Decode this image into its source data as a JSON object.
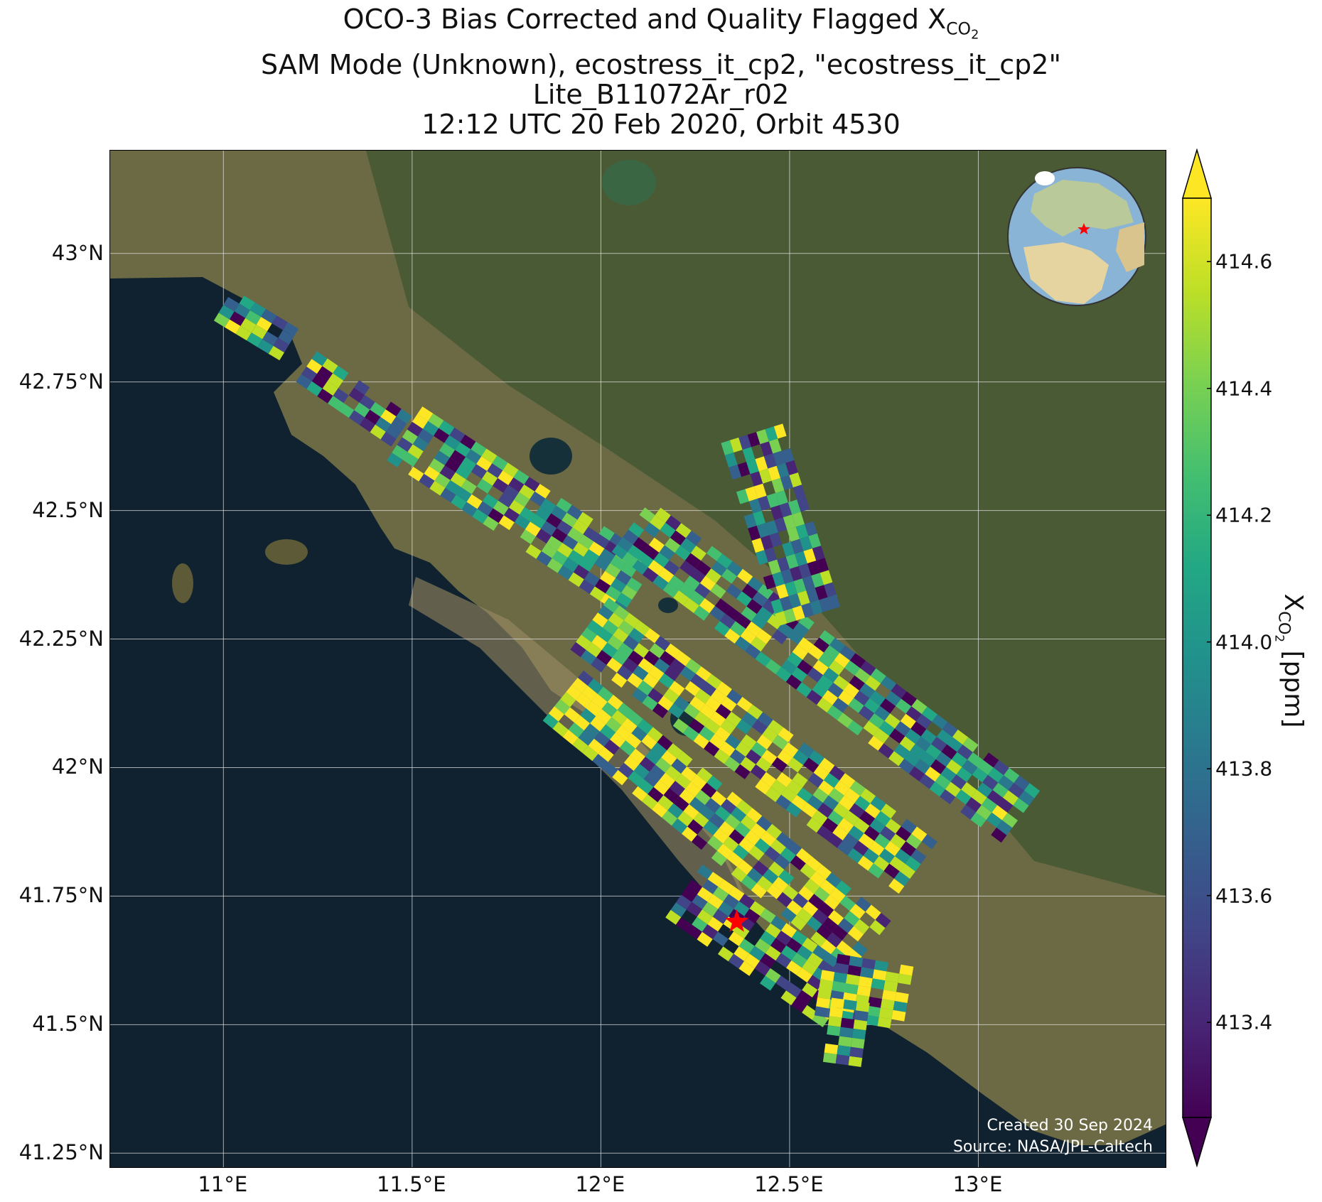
{
  "title": {
    "line1_prefix": "OCO-3 Bias Corrected and Quality Flagged X",
    "line1_sub": "CO",
    "line1_subsub": "2",
    "line2": "SAM Mode (Unknown), ecostress_it_cp2, \"ecostress_it_cp2\"",
    "line3": "Lite_B11072Ar_r02",
    "line4": "12:12 UTC 20 Feb 2020, Orbit 4530"
  },
  "credit": {
    "created": "Created 30 Sep 2024",
    "source": "Source: NASA/JPL-Caltech"
  },
  "map": {
    "lon_range": [
      10.7,
      13.5
    ],
    "lat_range": [
      41.22,
      43.2
    ],
    "lon_ticks": [
      {
        "value": 11.0,
        "label": "11°E"
      },
      {
        "value": 11.5,
        "label": "11.5°E"
      },
      {
        "value": 12.0,
        "label": "12°E"
      },
      {
        "value": 12.5,
        "label": "12.5°E"
      },
      {
        "value": 13.0,
        "label": "13°E"
      }
    ],
    "lat_ticks": [
      {
        "value": 43.0,
        "label": "43°N"
      },
      {
        "value": 42.75,
        "label": "42.75°N"
      },
      {
        "value": 42.5,
        "label": "42.5°N"
      },
      {
        "value": 42.25,
        "label": "42.25°N"
      },
      {
        "value": 42.0,
        "label": "42°N"
      },
      {
        "value": 41.75,
        "label": "41.75°N"
      },
      {
        "value": 41.5,
        "label": "41.5°N"
      },
      {
        "value": 41.25,
        "label": "41.25°N"
      }
    ],
    "grid": true,
    "target_marker": {
      "lon": 12.36,
      "lat": 41.7,
      "color": "#ff0000"
    },
    "inset_globe_marker_color": "#ff0000",
    "colors": {
      "sea": "#10212f",
      "land": "#6a6a42",
      "grid": "#e8e8e8"
    }
  },
  "colorbar": {
    "min": 413.25,
    "max": 414.7,
    "extend": "both",
    "colormap": "viridis",
    "ticks": [
      {
        "value": 413.4,
        "label": "413.4"
      },
      {
        "value": 413.6,
        "label": "413.6"
      },
      {
        "value": 413.8,
        "label": "413.8"
      },
      {
        "value": 414.0,
        "label": "414.0"
      },
      {
        "value": 414.2,
        "label": "414.2"
      },
      {
        "value": 414.4,
        "label": "414.4"
      },
      {
        "value": 414.6,
        "label": "414.6"
      }
    ],
    "label_prefix": "X",
    "label_sub": "CO",
    "label_subsub": "2",
    "label_suffix": " [ppm]"
  },
  "chart_data": {
    "type": "heatmap",
    "variable": "XCO2 [ppm]",
    "value_range": [
      413.25,
      414.7
    ],
    "swaths": [
      {
        "start": [
          11.0,
          42.9
        ],
        "end": [
          11.18,
          42.82
        ]
      },
      {
        "start": [
          11.22,
          42.78
        ],
        "end": [
          11.48,
          42.65
        ]
      },
      {
        "start": [
          11.48,
          42.65
        ],
        "end": [
          12.1,
          42.35
        ]
      },
      {
        "start": [
          12.08,
          42.47
        ],
        "end": [
          13.12,
          41.9
        ]
      },
      {
        "start": [
          12.4,
          42.65
        ],
        "end": [
          12.55,
          42.3
        ]
      },
      {
        "start": [
          11.97,
          42.28
        ],
        "end": [
          12.85,
          41.8
        ]
      },
      {
        "start": [
          11.9,
          42.14
        ],
        "end": [
          12.72,
          41.65
        ]
      },
      {
        "start": [
          12.22,
          41.76
        ],
        "end": [
          12.63,
          41.55
        ]
      },
      {
        "start": [
          12.58,
          41.58
        ],
        "end": [
          12.82,
          41.55
        ]
      },
      {
        "start": [
          12.6,
          41.49
        ],
        "end": [
          12.7,
          41.48
        ]
      }
    ]
  }
}
